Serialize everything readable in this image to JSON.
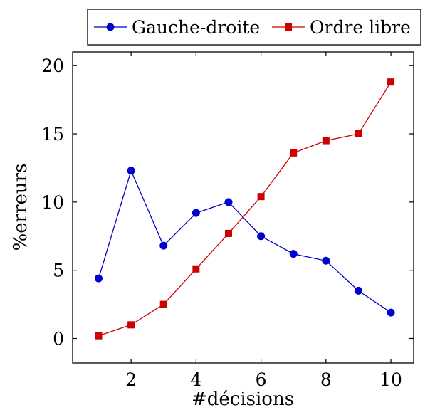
{
  "chart_data": {
    "type": "line",
    "xlabel": "#décisions",
    "ylabel": "%erreurs",
    "xlim": [
      0.2,
      10.7
    ],
    "ylim": [
      -1.8,
      21.0
    ],
    "xticks": [
      2,
      4,
      6,
      8,
      10
    ],
    "yticks": [
      0,
      5,
      10,
      15,
      20
    ],
    "legend_position": "top-right",
    "grid": false,
    "x": [
      1,
      2,
      3,
      4,
      5,
      6,
      7,
      8,
      9,
      10
    ],
    "series": [
      {
        "name": "Gauche-droite",
        "color": "#0000cc",
        "marker": "circle",
        "values": [
          4.4,
          12.3,
          6.8,
          9.2,
          10.0,
          7.5,
          6.2,
          5.7,
          3.5,
          1.9
        ]
      },
      {
        "name": "Ordre libre",
        "color": "#cc0000",
        "marker": "square",
        "values": [
          0.2,
          1.0,
          2.5,
          5.1,
          7.7,
          10.4,
          13.6,
          14.5,
          15.0,
          18.8
        ]
      }
    ]
  }
}
